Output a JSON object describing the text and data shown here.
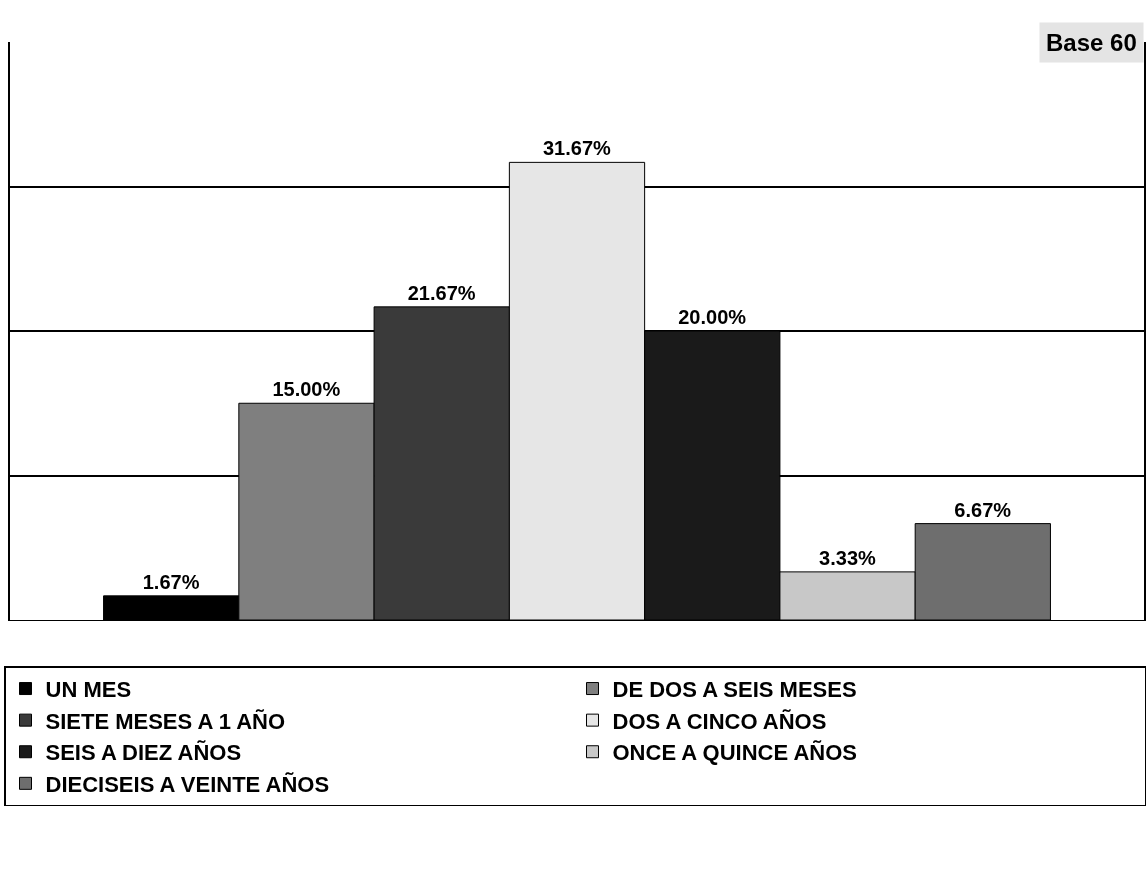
{
  "chart_data": {
    "type": "bar",
    "categories": [
      null
    ],
    "series": [
      {
        "name": "UN MES",
        "color": "#000000",
        "values": [
          1.67
        ],
        "value_labels": [
          "1.67%"
        ]
      },
      {
        "name": "DE DOS A SEIS MESES",
        "color": "#7f7f7f",
        "values": [
          15.0
        ],
        "value_labels": [
          "15.00%"
        ]
      },
      {
        "name": "SIETE MESES A 1 AÑO",
        "color": "#3a3a3a",
        "values": [
          21.67
        ],
        "value_labels": [
          "21.67%"
        ]
      },
      {
        "name": "DOS A CINCO AÑOS",
        "color": "#e6e6e6",
        "values": [
          31.67
        ],
        "value_labels": [
          "31.67%"
        ]
      },
      {
        "name": "SEIS A DIEZ AÑOS",
        "color": "#1a1a1a",
        "values": [
          20.0
        ],
        "value_labels": [
          "20.00%"
        ]
      },
      {
        "name": "ONCE A QUINCE AÑOS",
        "color": "#c8c8c8",
        "values": [
          3.33
        ],
        "value_labels": [
          "3.33%"
        ]
      },
      {
        "name": "DIECISEIS A VEINTE AÑOS",
        "color": "#6e6e6e",
        "values": [
          6.67
        ],
        "value_labels": [
          "6.67%"
        ]
      }
    ],
    "ylim": [
      0,
      40
    ],
    "yticks": [
      {
        "value": 0,
        "label": null
      },
      {
        "value": 10,
        "label": null
      },
      {
        "value": 20,
        "label": null
      },
      {
        "value": 30,
        "label": null
      }
    ],
    "grid": "y",
    "legend": "bottom",
    "annotations": [
      "Base 60"
    ]
  }
}
